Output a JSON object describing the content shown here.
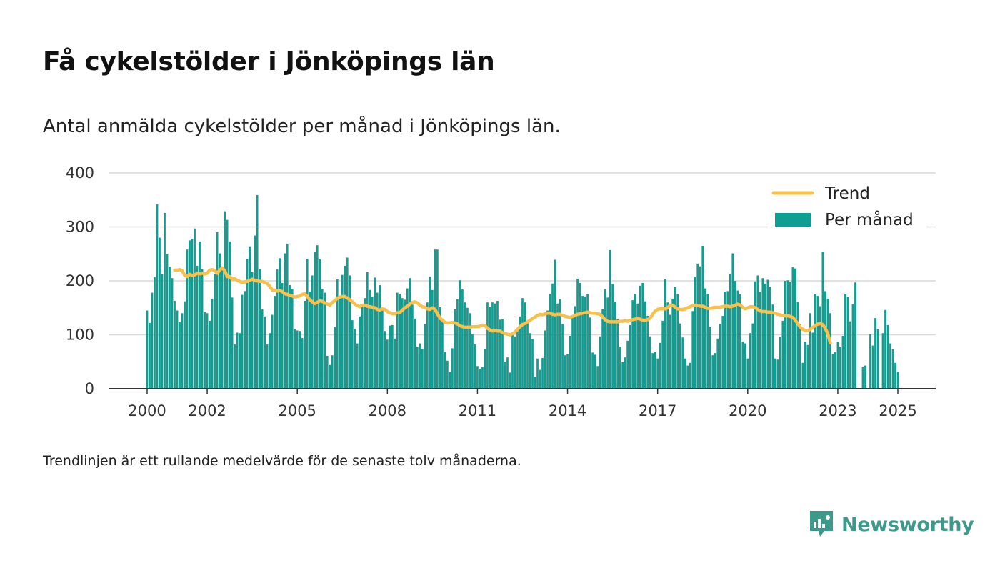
{
  "header": {
    "title": "Få cykelstölder i Jönköpings län",
    "subtitle": "Antal anmälda cykelstölder per månad i Jönköpings län."
  },
  "footer": {
    "note": "Trendlinjen är ett rullande medelvärde för de senaste tolv månaderna.",
    "brand": "Newsworthy"
  },
  "colors": {
    "bar": "#0e9e92",
    "trend": "#f9c14c",
    "brand": "#3d9a8b",
    "grid": "#d9d9d9",
    "axis": "#333333"
  },
  "chart_data": {
    "type": "bar",
    "x_unit": "month",
    "x_start": "2000-01",
    "x_end": "2025-01",
    "ylim": [
      0,
      400
    ],
    "y_ticks": [
      0,
      100,
      200,
      300,
      400
    ],
    "x_ticks": [
      "2000",
      "2002",
      "2005",
      "2008",
      "2011",
      "2014",
      "2017",
      "2020",
      "2023",
      "2025"
    ],
    "grid": true,
    "legend": {
      "position": "top-right",
      "entries": [
        "Trend",
        "Per månad"
      ]
    },
    "series": [
      {
        "name": "Per månad",
        "type": "bar",
        "start": "2000-01",
        "values": [
          145,
          122,
          178,
          207,
          342,
          280,
          212,
          326,
          249,
          226,
          205,
          163,
          145,
          124,
          140,
          162,
          258,
          275,
          278,
          297,
          228,
          273,
          222,
          142,
          140,
          126,
          167,
          212,
          290,
          251,
          223,
          329,
          313,
          273,
          169,
          82,
          104,
          103,
          174,
          181,
          241,
          264,
          216,
          284,
          359,
          222,
          147,
          134,
          82,
          103,
          137,
          172,
          221,
          242,
          196,
          251,
          269,
          192,
          185,
          110,
          108,
          107,
          94,
          163,
          241,
          180,
          210,
          254,
          266,
          240,
          185,
          178,
          61,
          44,
          62,
          114,
          203,
          170,
          211,
          228,
          243,
          210,
          127,
          111,
          84,
          134,
          154,
          168,
          216,
          183,
          171,
          206,
          178,
          192,
          150,
          107,
          91,
          117,
          118,
          93,
          178,
          176,
          168,
          165,
          186,
          205,
          156,
          130,
          78,
          84,
          74,
          120,
          160,
          208,
          183,
          258,
          258,
          151,
          125,
          68,
          52,
          31,
          75,
          147,
          166,
          201,
          184,
          160,
          150,
          140,
          102,
          82,
          42,
          37,
          40,
          74,
          160,
          151,
          160,
          158,
          163,
          128,
          129,
          50,
          58,
          30,
          100,
          97,
          110,
          134,
          168,
          160,
          122,
          103,
          92,
          22,
          56,
          35,
          57,
          108,
          145,
          176,
          195,
          239,
          158,
          166,
          120,
          62,
          64,
          98,
          135,
          153,
          204,
          196,
          172,
          171,
          175,
          132,
          67,
          63,
          42,
          97,
          147,
          184,
          169,
          257,
          194,
          161,
          129,
          78,
          49,
          58,
          89,
          118,
          164,
          175,
          158,
          191,
          196,
          162,
          135,
          97,
          66,
          68,
          56,
          85,
          126,
          203,
          160,
          137,
          167,
          189,
          175,
          121,
          95,
          56,
          43,
          48,
          144,
          207,
          232,
          227,
          265,
          186,
          176,
          115,
          62,
          66,
          93,
          120,
          135,
          180,
          181,
          213,
          251,
          200,
          182,
          175,
          87,
          84,
          56,
          103,
          121,
          199,
          210,
          180,
          205,
          195,
          202,
          189,
          156,
          56,
          54,
          96,
          126,
          200,
          201,
          198,
          225,
          223,
          161,
          120,
          48,
          87,
          81,
          140,
          104,
          176,
          172,
          153,
          254,
          181,
          167,
          140,
          64,
          68,
          87,
          78,
          98,
          176,
          170,
          125,
          157,
          197,
          0,
          0,
          41,
          43,
          0,
          101,
          80,
          131,
          110,
          0,
          103,
          146,
          118,
          84,
          73,
          48,
          31
        ]
      },
      {
        "name": "Trend",
        "type": "line",
        "start": "2000-12",
        "values": [
          220,
          220,
          221,
          219,
          210,
          208,
          212,
          210,
          211,
          214,
          213,
          214,
          213,
          214,
          220,
          221,
          219,
          214,
          220,
          224,
          219,
          208,
          208,
          203,
          204,
          201,
          199,
          197,
          198,
          199,
          201,
          203,
          201,
          200,
          199,
          199,
          197,
          195,
          190,
          183,
          183,
          181,
          182,
          180,
          176,
          175,
          173,
          172,
          170,
          171,
          172,
          175,
          176,
          171,
          165,
          161,
          158,
          160,
          163,
          162,
          159,
          157,
          155,
          160,
          163,
          168,
          170,
          171,
          171,
          168,
          165,
          161,
          157,
          154,
          152,
          155,
          155,
          153,
          152,
          151,
          150,
          147,
          146,
          148,
          147,
          143,
          141,
          139,
          139,
          141,
          141,
          146,
          150,
          153,
          157,
          160,
          161,
          159,
          155,
          152,
          151,
          148,
          147,
          150,
          147,
          139,
          131,
          127,
          123,
          122,
          122,
          123,
          122,
          120,
          117,
          115,
          114,
          114,
          114,
          115,
          115,
          115,
          116,
          118,
          117,
          112,
          109,
          107,
          108,
          107,
          107,
          104,
          102,
          101,
          100,
          102,
          105,
          110,
          115,
          119,
          121,
          124,
          127,
          130,
          133,
          136,
          138,
          137,
          139,
          140,
          140,
          138,
          137,
          138,
          138,
          136,
          134,
          133,
          132,
          134,
          136,
          138,
          139,
          140,
          141,
          142,
          141,
          140,
          140,
          139,
          138,
          133,
          128,
          125,
          124,
          124,
          124,
          124,
          125,
          125,
          126,
          125,
          127,
          128,
          129,
          130,
          129,
          127,
          127,
          128,
          131,
          138,
          144,
          147,
          148,
          148,
          148,
          150,
          155,
          155,
          151,
          148,
          147,
          147,
          148,
          150,
          152,
          154,
          155,
          154,
          153,
          153,
          151,
          149,
          149,
          150,
          151,
          151,
          151,
          152,
          153,
          153,
          152,
          153,
          155,
          157,
          155,
          151,
          148,
          150,
          152,
          152,
          150,
          147,
          144,
          143,
          143,
          142,
          142,
          141,
          140,
          138,
          137,
          136,
          135,
          135,
          134,
          132,
          127,
          121,
          114,
          110,
          108,
          108,
          110,
          114,
          117,
          120,
          121,
          119,
          112,
          102,
          85
        ]
      }
    ]
  }
}
